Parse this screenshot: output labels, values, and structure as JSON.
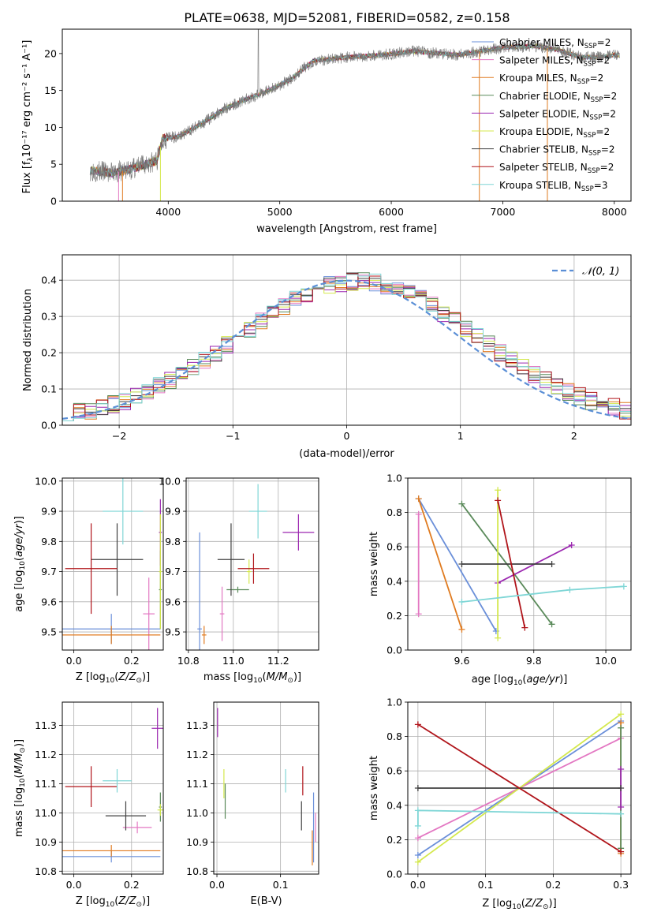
{
  "figure_title": "PLATE=0638, MJD=52081, FIBERID=0582, z=0.158",
  "colors": {
    "chabrier_miles": "#6a8fd9",
    "salpeter_miles": "#e377c2",
    "kroupa_miles": "#e07b20",
    "chabrier_elodie": "#5a8a5a",
    "salpeter_elodie": "#9b27b0",
    "kroupa_elodie": "#d4e84c",
    "chabrier_stelib": "#404040",
    "salpeter_stelib": "#b0141a",
    "kroupa_stelib": "#7fd6d6",
    "normal_curve": "#5b8fd6",
    "grid": "#b0b0b0"
  },
  "chart_data": [
    {
      "id": "spectrum",
      "type": "line",
      "xlabel": "wavelength [Angstrom, rest frame]",
      "ylabel": "Flux [fλ10⁻¹⁷ erg cm⁻² s⁻¹ A⁻¹]",
      "xlim": [
        3050,
        8150
      ],
      "ylim": [
        0,
        23.3
      ],
      "xticks": [
        4000,
        5000,
        6000,
        7000,
        8000
      ],
      "yticks": [
        0,
        5,
        10,
        15,
        20
      ],
      "grid": false,
      "legend_position": "top-right",
      "legend": [
        {
          "key": "chabrier_miles",
          "label": "Chabrier MILES, N",
          "sub": "SSP",
          "tail": "=2"
        },
        {
          "key": "salpeter_miles",
          "label": "Salpeter MILES, N",
          "sub": "SSP",
          "tail": "=2"
        },
        {
          "key": "kroupa_miles",
          "label": "Kroupa MILES, N",
          "sub": "SSP",
          "tail": "=2"
        },
        {
          "key": "chabrier_elodie",
          "label": "Chabrier ELODIE, N",
          "sub": "SSP",
          "tail": "=2"
        },
        {
          "key": "salpeter_elodie",
          "label": "Salpeter ELODIE, N",
          "sub": "SSP",
          "tail": "=2"
        },
        {
          "key": "kroupa_elodie",
          "label": "Kroupa ELODIE, N",
          "sub": "SSP",
          "tail": "=2"
        },
        {
          "key": "chabrier_stelib",
          "label": "Chabrier STELIB, N",
          "sub": "SSP",
          "tail": "=2"
        },
        {
          "key": "salpeter_stelib",
          "label": "Salpeter STELIB, N",
          "sub": "SSP",
          "tail": "=2"
        },
        {
          "key": "kroupa_stelib",
          "label": "Kroupa STELIB, N",
          "sub": "SSP",
          "tail": "=3"
        }
      ],
      "continuum_anchors": [
        [
          3300,
          4.2
        ],
        [
          3500,
          3.8
        ],
        [
          3700,
          4.5
        ],
        [
          3900,
          5.5
        ],
        [
          3950,
          8.5
        ],
        [
          4100,
          8.8
        ],
        [
          4300,
          10.5
        ],
        [
          4500,
          12.5
        ],
        [
          4700,
          13.8
        ],
        [
          4900,
          15.0
        ],
        [
          5100,
          16.5
        ],
        [
          5300,
          19.0
        ],
        [
          5600,
          19.5
        ],
        [
          5900,
          19.8
        ],
        [
          6200,
          20.3
        ],
        [
          6600,
          19.8
        ],
        [
          6750,
          20.2
        ],
        [
          7000,
          20.8
        ],
        [
          7300,
          21.0
        ],
        [
          7500,
          20.5
        ],
        [
          7700,
          19.5
        ],
        [
          7900,
          19.5
        ],
        [
          8000,
          19.8
        ]
      ],
      "spectrum_wavelength_range": [
        3300,
        8050
      ]
    },
    {
      "id": "residuals",
      "type": "histogram",
      "xlabel": "(data-model)/error",
      "ylabel": "Normed distribution",
      "xlim": [
        -2.5,
        2.5
      ],
      "ylim": [
        0,
        0.47
      ],
      "xticks": [
        -2,
        -1,
        0,
        1,
        2
      ],
      "yticks": [
        0.0,
        0.1,
        0.2,
        0.3,
        0.4
      ],
      "grid": true,
      "legend_position": "top-right",
      "normal_curve_label": "𝒩(0, 1)",
      "bin_width": 0.1
    },
    {
      "id": "age_vs_Z",
      "type": "errorbar",
      "xlabel": "Z [log10(Z/Z⊙)]",
      "ylabel": "age  [log10(age/yr)]",
      "xlim": [
        -0.04,
        0.31
      ],
      "ylim": [
        9.44,
        10.01
      ],
      "xticks": [
        0.0,
        0.2
      ],
      "yticks": [
        9.5,
        9.6,
        9.7,
        9.8,
        9.9,
        10.0
      ],
      "grid": true,
      "points": [
        {
          "key": "chabrier_miles",
          "x": 0.13,
          "xerr": 0.17,
          "y": 9.51,
          "yerr": 0.05
        },
        {
          "key": "salpeter_miles",
          "x": 0.26,
          "xerr": 0.02,
          "y": 9.56,
          "yerr": 0.12
        },
        {
          "key": "kroupa_miles",
          "x": 0.13,
          "xerr": 0.17,
          "y": 9.49,
          "yerr": 0.03
        },
        {
          "key": "chabrier_elodie",
          "x": 0.3,
          "xerr": 0.005,
          "y": 9.64,
          "yerr": 0.13
        },
        {
          "key": "salpeter_elodie",
          "x": 0.3,
          "xerr": 0.005,
          "y": 9.83,
          "yerr": 0.11
        },
        {
          "key": "kroupa_elodie",
          "x": 0.3,
          "xerr": 0.005,
          "y": 9.7,
          "yerr": 0.19
        },
        {
          "key": "chabrier_stelib",
          "x": 0.15,
          "xerr": 0.09,
          "y": 9.74,
          "yerr": 0.12
        },
        {
          "key": "salpeter_stelib",
          "x": 0.06,
          "xerr": 0.09,
          "y": 9.71,
          "yerr": 0.15
        },
        {
          "key": "kroupa_stelib",
          "x": 0.17,
          "xerr": 0.07,
          "y": 9.9,
          "yerr": 0.11
        }
      ]
    },
    {
      "id": "age_vs_mass",
      "type": "errorbar",
      "xlabel": "mass [log10(M/M⊙)]",
      "ylabel": "",
      "xlim": [
        10.79,
        11.38
      ],
      "ylim": [
        9.44,
        10.01
      ],
      "xticks": [
        10.8,
        11.0,
        11.2
      ],
      "yticks": [
        9.5,
        9.6,
        9.7,
        9.8,
        9.9,
        10.0
      ],
      "grid": true,
      "points": [
        {
          "key": "chabrier_miles",
          "x": 10.85,
          "xerr": 0.01,
          "y": 9.51,
          "yerr": 0.32
        },
        {
          "key": "salpeter_miles",
          "x": 10.95,
          "xerr": 0.01,
          "y": 9.56,
          "yerr": 0.09
        },
        {
          "key": "kroupa_miles",
          "x": 10.87,
          "xerr": 0.01,
          "y": 9.49,
          "yerr": 0.03
        },
        {
          "key": "chabrier_elodie",
          "x": 11.02,
          "xerr": 0.05,
          "y": 9.64,
          "yerr": 0.01
        },
        {
          "key": "salpeter_elodie",
          "x": 11.29,
          "xerr": 0.07,
          "y": 9.83,
          "yerr": 0.06
        },
        {
          "key": "kroupa_elodie",
          "x": 11.07,
          "xerr": 0.01,
          "y": 9.7,
          "yerr": 0.04
        },
        {
          "key": "chabrier_stelib",
          "x": 10.99,
          "xerr": 0.06,
          "y": 9.74,
          "yerr": 0.12
        },
        {
          "key": "salpeter_stelib",
          "x": 11.09,
          "xerr": 0.07,
          "y": 9.71,
          "yerr": 0.05
        },
        {
          "key": "kroupa_stelib",
          "x": 11.11,
          "xerr": 0.04,
          "y": 9.9,
          "yerr": 0.09
        }
      ]
    },
    {
      "id": "weight_vs_age",
      "type": "line",
      "xlabel": "age  [log10(age/yr)]",
      "ylabel": "mass weight",
      "xlim": [
        9.45,
        10.07
      ],
      "ylim": [
        0,
        1.0
      ],
      "xticks": [
        9.6,
        9.8,
        10.0
      ],
      "yticks": [
        0.0,
        0.2,
        0.4,
        0.6,
        0.8,
        1.0
      ],
      "grid": true,
      "series": [
        {
          "key": "chabrier_miles",
          "x": [
            9.48,
            9.695
          ],
          "y": [
            0.88,
            0.11
          ]
        },
        {
          "key": "salpeter_miles",
          "x": [
            9.48,
            9.48
          ],
          "y": [
            0.79,
            0.21
          ]
        },
        {
          "key": "kroupa_miles",
          "x": [
            9.48,
            9.6
          ],
          "y": [
            0.88,
            0.12
          ]
        },
        {
          "key": "chabrier_elodie",
          "x": [
            9.6,
            9.85
          ],
          "y": [
            0.85,
            0.15
          ]
        },
        {
          "key": "salpeter_elodie",
          "x": [
            9.7,
            9.905
          ],
          "y": [
            0.39,
            0.61
          ]
        },
        {
          "key": "kroupa_elodie",
          "x": [
            9.7,
            9.7
          ],
          "y": [
            0.93,
            0.07
          ]
        },
        {
          "key": "chabrier_stelib",
          "x": [
            9.6,
            9.85
          ],
          "y": [
            0.5,
            0.5
          ]
        },
        {
          "key": "salpeter_stelib",
          "x": [
            9.7,
            9.775
          ],
          "y": [
            0.87,
            0.13
          ]
        },
        {
          "key": "kroupa_stelib",
          "x": [
            9.6,
            9.9,
            10.05
          ],
          "y": [
            0.28,
            0.35,
            0.37
          ]
        }
      ]
    },
    {
      "id": "mass_vs_Z",
      "type": "errorbar",
      "xlabel": "Z [log10(Z/Z⊙)]",
      "ylabel": "mass [log10(M/M⊙)]",
      "xlim": [
        -0.04,
        0.31
      ],
      "ylim": [
        10.79,
        11.38
      ],
      "xticks": [
        0.0,
        0.2
      ],
      "yticks": [
        10.8,
        10.9,
        11.0,
        11.1,
        11.2,
        11.3
      ],
      "grid": true,
      "points": [
        {
          "key": "chabrier_miles",
          "x": 0.13,
          "xerr": 0.17,
          "y": 10.85,
          "yerr": 0.02
        },
        {
          "key": "salpeter_miles",
          "x": 0.22,
          "xerr": 0.05,
          "y": 10.95,
          "yerr": 0.02
        },
        {
          "key": "kroupa_miles",
          "x": 0.13,
          "xerr": 0.17,
          "y": 10.87,
          "yerr": 0.02
        },
        {
          "key": "chabrier_elodie",
          "x": 0.3,
          "xerr": 0.005,
          "y": 11.02,
          "yerr": 0.05
        },
        {
          "key": "salpeter_elodie",
          "x": 0.29,
          "xerr": 0.02,
          "y": 11.29,
          "yerr": 0.07
        },
        {
          "key": "kroupa_elodie",
          "x": 0.3,
          "xerr": 0.01,
          "y": 11.01,
          "yerr": 0.02
        },
        {
          "key": "chabrier_stelib",
          "x": 0.18,
          "xerr": 0.07,
          "y": 10.99,
          "yerr": 0.05
        },
        {
          "key": "salpeter_stelib",
          "x": 0.06,
          "xerr": 0.09,
          "y": 11.09,
          "yerr": 0.07
        },
        {
          "key": "kroupa_stelib",
          "x": 0.15,
          "xerr": 0.05,
          "y": 11.11,
          "yerr": 0.04
        }
      ]
    },
    {
      "id": "mass_vs_ebv",
      "type": "errorbar",
      "xlabel": "E(B-V)",
      "ylabel": "",
      "xlim": [
        -0.005,
        0.16
      ],
      "ylim": [
        10.79,
        11.38
      ],
      "xticks": [
        0.0,
        0.1
      ],
      "yticks": [
        10.8,
        10.9,
        11.0,
        11.1,
        11.2,
        11.3
      ],
      "grid": true,
      "points": [
        {
          "key": "chabrier_miles",
          "x": 0.152,
          "xerr": 0,
          "y": 10.95,
          "yerr": 0.12
        },
        {
          "key": "salpeter_miles",
          "x": 0.155,
          "xerr": 0,
          "y": 10.95,
          "yerr": 0.05
        },
        {
          "key": "kroupa_miles",
          "x": 0.15,
          "xerr": 0,
          "y": 10.88,
          "yerr": 0.06
        },
        {
          "key": "chabrier_elodie",
          "x": 0.013,
          "xerr": 0,
          "y": 11.04,
          "yerr": 0.06
        },
        {
          "key": "salpeter_elodie",
          "x": 0.001,
          "xerr": 0,
          "y": 11.31,
          "yerr": 0.05
        },
        {
          "key": "kroupa_elodie",
          "x": 0.011,
          "xerr": 0,
          "y": 11.1,
          "yerr": 0.05
        },
        {
          "key": "chabrier_stelib",
          "x": 0.133,
          "xerr": 0,
          "y": 10.99,
          "yerr": 0.05
        },
        {
          "key": "salpeter_stelib",
          "x": 0.135,
          "xerr": 0,
          "y": 11.11,
          "yerr": 0.05
        },
        {
          "key": "kroupa_stelib",
          "x": 0.108,
          "xerr": 0,
          "y": 11.11,
          "yerr": 0.04
        }
      ]
    },
    {
      "id": "weight_vs_Z",
      "type": "line",
      "xlabel": "Z [log10(Z/Z⊙)]",
      "ylabel": "mass weight",
      "xlim": [
        -0.015,
        0.315
      ],
      "ylim": [
        0,
        1.0
      ],
      "xticks": [
        0.0,
        0.1,
        0.2,
        0.3
      ],
      "yticks": [
        0.0,
        0.2,
        0.4,
        0.6,
        0.8,
        1.0
      ],
      "grid": true,
      "series": [
        {
          "key": "chabrier_miles",
          "x": [
            0.0,
            0.3
          ],
          "y": [
            0.11,
            0.89
          ]
        },
        {
          "key": "salpeter_miles",
          "x": [
            0.0,
            0.3
          ],
          "y": [
            0.21,
            0.79
          ]
        },
        {
          "key": "kroupa_miles",
          "x": [
            0.3,
            0.3
          ],
          "y": [
            0.12,
            0.88
          ]
        },
        {
          "key": "chabrier_elodie",
          "x": [
            0.3,
            0.3
          ],
          "y": [
            0.15,
            0.85
          ]
        },
        {
          "key": "salpeter_elodie",
          "x": [
            0.3,
            0.3
          ],
          "y": [
            0.39,
            0.61
          ]
        },
        {
          "key": "kroupa_elodie",
          "x": [
            0.0,
            0.3
          ],
          "y": [
            0.07,
            0.93
          ]
        },
        {
          "key": "chabrier_stelib",
          "x": [
            0.0,
            0.3
          ],
          "y": [
            0.5,
            0.5
          ]
        },
        {
          "key": "salpeter_stelib",
          "x": [
            0.0,
            0.3
          ],
          "y": [
            0.87,
            0.13
          ]
        },
        {
          "key": "kroupa_stelib",
          "x": [
            0.0,
            0.0,
            0.3
          ],
          "y": [
            0.28,
            0.37,
            0.35
          ]
        }
      ]
    }
  ]
}
